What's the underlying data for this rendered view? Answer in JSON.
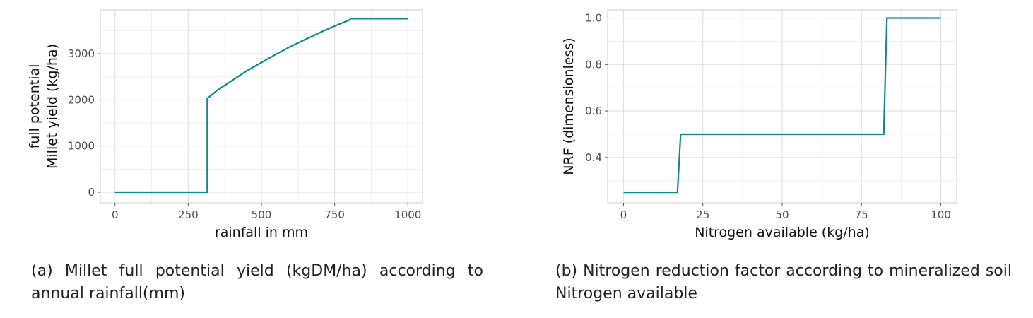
{
  "chart_data": [
    {
      "type": "line",
      "xlabel": "rainfall in mm",
      "ylabel_lines": [
        "full potential",
        "Millet yield (kg/ha)"
      ],
      "xlim": [
        -50,
        1050
      ],
      "ylim": [
        -230,
        3950
      ],
      "xticks": [
        0,
        250,
        500,
        750,
        1000
      ],
      "yticks": [
        0,
        1000,
        2000,
        3000
      ],
      "xtick_labels": [
        "0",
        "250",
        "500",
        "750",
        "1000"
      ],
      "ytick_labels": [
        "0",
        "1000",
        "2000",
        "3000"
      ],
      "x_minor": [
        125,
        375,
        625,
        875
      ],
      "y_minor": [
        500,
        1500,
        2500,
        3500
      ],
      "grid": true,
      "color": "#0e8a8a",
      "series": [
        {
          "x": [
            0,
            315,
            315,
            350,
            400,
            450,
            500,
            550,
            600,
            650,
            700,
            750,
            800,
            805,
            1000
          ],
          "values": [
            0,
            0,
            2030,
            2210,
            2420,
            2630,
            2810,
            2990,
            3160,
            3310,
            3460,
            3600,
            3730,
            3760,
            3760
          ]
        }
      ],
      "caption": "(a) Millet full potential yield (kgDM/ha) according to annual rainfall(mm)"
    },
    {
      "type": "line",
      "xlabel": "Nitrogen available (kg/ha)",
      "ylabel_lines": [
        "NRF (dimensionless)"
      ],
      "xlim": [
        -5,
        105
      ],
      "ylim": [
        0.205,
        1.035
      ],
      "xticks": [
        0,
        25,
        50,
        75,
        100
      ],
      "yticks": [
        0.4,
        0.6,
        0.8,
        1.0
      ],
      "xtick_labels": [
        "0",
        "25",
        "50",
        "75",
        "100"
      ],
      "ytick_labels": [
        "0.4",
        "0.6",
        "0.8",
        "1.0"
      ],
      "x_minor": [
        12.5,
        37.5,
        62.5,
        87.5
      ],
      "y_minor": [
        0.3,
        0.5,
        0.7,
        0.9
      ],
      "grid": true,
      "color": "#0e8a8a",
      "series": [
        {
          "x": [
            0,
            17,
            18,
            82,
            83,
            100
          ],
          "values": [
            0.25,
            0.25,
            0.5,
            0.5,
            1.0,
            1.0
          ]
        }
      ],
      "caption": "(b) Nitrogen reduction factor according to mineralized soil Nitrogen available"
    }
  ]
}
